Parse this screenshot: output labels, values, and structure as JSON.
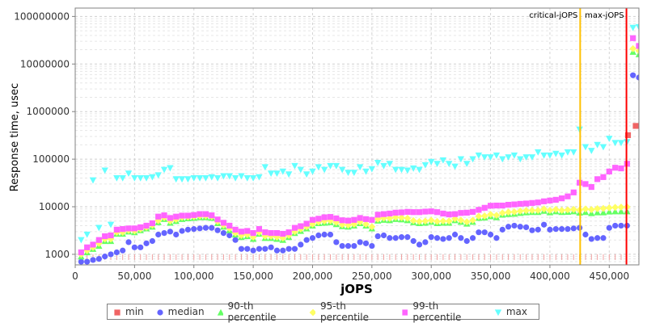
{
  "chart_data": {
    "type": "scatter",
    "title": "",
    "xlabel": "jOPS",
    "ylabel": "Response time, usec",
    "x_scale": "linear",
    "y_scale": "log",
    "xlim": [
      0,
      475000
    ],
    "ylim": [
      600,
      150000000
    ],
    "grid": true,
    "legend_position": "bottom",
    "x_ticks": [
      0,
      50000,
      100000,
      150000,
      200000,
      250000,
      300000,
      350000,
      400000,
      450000
    ],
    "x_tick_labels": [
      "0",
      "50,000",
      "100,000",
      "150,000",
      "200,000",
      "250,000",
      "300,000",
      "350,000",
      "400,000",
      "450,000"
    ],
    "y_ticks": [
      1000,
      10000,
      100000,
      1000000,
      10000000,
      100000000
    ],
    "y_tick_labels": [
      "1000",
      "10000",
      "100000",
      "1000000",
      "10000000",
      "100000000"
    ],
    "markers": [
      {
        "label": "critical-jOPS",
        "x": 425500,
        "color": "#ffc000"
      },
      {
        "label": "max-jOPS",
        "x": 464500,
        "color": "#ff0000"
      }
    ],
    "series": [
      {
        "name": "min",
        "color": "#f06464",
        "shape": "square",
        "x": [
          465800,
          472300
        ],
        "y": [
          320000,
          500000
        ]
      },
      {
        "name": "median",
        "color": "#6464ff",
        "shape": "circle",
        "x": [
          5000,
          10000,
          15000,
          20000,
          25000,
          30000,
          35000,
          40000,
          45000,
          50000,
          55000,
          60000,
          65000,
          70000,
          75000,
          80000,
          85000,
          90000,
          95000,
          100000,
          105000,
          110000,
          115000,
          120000,
          125000,
          130000,
          135000,
          140000,
          145000,
          150000,
          155000,
          160000,
          165000,
          170000,
          175000,
          180000,
          185000,
          190000,
          195000,
          200000,
          205000,
          210000,
          215000,
          220000,
          225000,
          230000,
          235000,
          240000,
          245000,
          250000,
          255000,
          260000,
          265000,
          270000,
          275000,
          280000,
          285000,
          290000,
          295000,
          300000,
          305000,
          310000,
          315000,
          320000,
          325000,
          330000,
          335000,
          340000,
          345000,
          350000,
          355000,
          360000,
          365000,
          370000,
          375000,
          380000,
          385000,
          390000,
          395000,
          400000,
          405000,
          410000,
          415000,
          420000,
          425000,
          430000,
          435000,
          440000,
          445000,
          450000,
          455000,
          460000,
          465000,
          470000,
          475000
        ],
        "y": [
          700,
          700,
          760,
          800,
          900,
          1000,
          1100,
          1200,
          1800,
          1400,
          1400,
          1700,
          1900,
          2600,
          2800,
          3000,
          2600,
          3100,
          3300,
          3400,
          3500,
          3600,
          3600,
          3200,
          2800,
          2500,
          2000,
          1300,
          1300,
          1200,
          1300,
          1300,
          1400,
          1200,
          1200,
          1300,
          1300,
          1600,
          2000,
          2200,
          2500,
          2600,
          2600,
          1800,
          1500,
          1500,
          1500,
          1800,
          1700,
          1500,
          2400,
          2500,
          2200,
          2200,
          2300,
          2300,
          1900,
          1600,
          1800,
          2300,
          2200,
          2100,
          2200,
          2600,
          2200,
          1900,
          2200,
          2900,
          2900,
          2600,
          2200,
          3300,
          3800,
          4000,
          3800,
          3700,
          3200,
          3300,
          4200,
          3300,
          3400,
          3400,
          3400,
          3500,
          3600,
          2600,
          2100,
          2200,
          2200,
          3600,
          4000,
          4000,
          4000,
          5800000,
          5200000
        ]
      },
      {
        "name": "90-th percentile",
        "color": "#64ff64",
        "shape": "triangle-up",
        "x": [
          5000,
          10000,
          15000,
          20000,
          25000,
          30000,
          35000,
          40000,
          45000,
          50000,
          55000,
          60000,
          65000,
          70000,
          75000,
          80000,
          85000,
          90000,
          95000,
          100000,
          105000,
          110000,
          115000,
          120000,
          125000,
          130000,
          135000,
          140000,
          145000,
          150000,
          155000,
          160000,
          165000,
          170000,
          175000,
          180000,
          185000,
          190000,
          195000,
          200000,
          205000,
          210000,
          215000,
          220000,
          225000,
          230000,
          235000,
          240000,
          245000,
          250000,
          255000,
          260000,
          265000,
          270000,
          275000,
          280000,
          285000,
          290000,
          295000,
          300000,
          305000,
          310000,
          315000,
          320000,
          325000,
          330000,
          335000,
          340000,
          345000,
          350000,
          355000,
          360000,
          365000,
          370000,
          375000,
          380000,
          385000,
          390000,
          395000,
          400000,
          405000,
          410000,
          415000,
          420000,
          425000,
          430000,
          435000,
          440000,
          445000,
          450000,
          455000,
          460000,
          465000,
          470000,
          475000
        ],
        "y": [
          900,
          1100,
          1300,
          1500,
          1900,
          1900,
          2700,
          2700,
          3000,
          2900,
          3200,
          3500,
          3800,
          4700,
          5500,
          4600,
          5000,
          5500,
          5700,
          5800,
          6000,
          6000,
          5800,
          4500,
          3800,
          3200,
          2600,
          2300,
          2400,
          2100,
          2700,
          2200,
          2200,
          2100,
          2000,
          2300,
          2800,
          3100,
          3500,
          4000,
          4500,
          4600,
          4700,
          4300,
          3900,
          3800,
          4000,
          4500,
          4000,
          3500,
          5100,
          5300,
          5200,
          5500,
          5400,
          5200,
          4700,
          4500,
          4600,
          4800,
          4500,
          4600,
          4600,
          5200,
          4800,
          4400,
          4800,
          5800,
          5900,
          6300,
          6000,
          6800,
          7000,
          7100,
          7400,
          7600,
          7700,
          7700,
          8200,
          7600,
          8000,
          7700,
          7800,
          8000,
          7500,
          7700,
          7300,
          7600,
          7600,
          7900,
          8000,
          8000,
          8000,
          18000000,
          16000000
        ]
      },
      {
        "name": "95-th percentile",
        "color": "#ffff64",
        "shape": "diamond",
        "x": [
          5000,
          10000,
          15000,
          20000,
          25000,
          30000,
          35000,
          40000,
          45000,
          50000,
          55000,
          60000,
          65000,
          70000,
          75000,
          80000,
          85000,
          90000,
          95000,
          100000,
          105000,
          110000,
          115000,
          120000,
          125000,
          130000,
          135000,
          140000,
          145000,
          150000,
          155000,
          160000,
          165000,
          170000,
          175000,
          180000,
          185000,
          190000,
          195000,
          200000,
          205000,
          210000,
          215000,
          220000,
          225000,
          230000,
          235000,
          240000,
          245000,
          250000,
          255000,
          260000,
          265000,
          270000,
          275000,
          280000,
          285000,
          290000,
          295000,
          300000,
          305000,
          310000,
          315000,
          320000,
          325000,
          330000,
          335000,
          340000,
          345000,
          350000,
          355000,
          360000,
          365000,
          370000,
          375000,
          380000,
          385000,
          390000,
          395000,
          400000,
          405000,
          410000,
          415000,
          420000,
          425000,
          430000,
          435000,
          440000,
          445000,
          450000,
          455000,
          460000,
          465000,
          470000,
          475000
        ],
        "y": [
          1000,
          1200,
          1400,
          1700,
          2100,
          2100,
          2900,
          2900,
          3200,
          3100,
          3400,
          3700,
          4100,
          5100,
          5900,
          5000,
          5400,
          6000,
          6100,
          6200,
          6400,
          6400,
          6200,
          4900,
          4100,
          3500,
          2800,
          2500,
          2600,
          2300,
          2900,
          2400,
          2400,
          2300,
          2200,
          2500,
          3000,
          3400,
          3800,
          4300,
          4800,
          5000,
          5100,
          4700,
          4200,
          4100,
          4300,
          4800,
          4300,
          3800,
          5500,
          5800,
          5700,
          6000,
          5900,
          5700,
          5100,
          4900,
          5000,
          5200,
          4900,
          5000,
          5000,
          5600,
          5200,
          4800,
          5200,
          6300,
          6400,
          6900,
          6600,
          7400,
          7700,
          7800,
          8100,
          8300,
          8400,
          8400,
          9000,
          8400,
          8800,
          8400,
          8600,
          8800,
          8500,
          9000,
          8700,
          9100,
          9200,
          9500,
          9700,
          9800,
          9900,
          21000000,
          19000000
        ]
      },
      {
        "name": "99-th percentile",
        "color": "#ff64ff",
        "shape": "square",
        "x": [
          5000,
          10000,
          15000,
          20000,
          25000,
          30000,
          35000,
          40000,
          45000,
          50000,
          55000,
          60000,
          65000,
          70000,
          75000,
          80000,
          85000,
          90000,
          95000,
          100000,
          105000,
          110000,
          115000,
          120000,
          125000,
          130000,
          135000,
          140000,
          145000,
          150000,
          155000,
          160000,
          165000,
          170000,
          175000,
          180000,
          185000,
          190000,
          195000,
          200000,
          205000,
          210000,
          215000,
          220000,
          225000,
          230000,
          235000,
          240000,
          245000,
          250000,
          255000,
          260000,
          265000,
          270000,
          275000,
          280000,
          285000,
          290000,
          295000,
          300000,
          305000,
          310000,
          315000,
          320000,
          325000,
          330000,
          335000,
          340000,
          345000,
          350000,
          355000,
          360000,
          365000,
          370000,
          375000,
          380000,
          385000,
          390000,
          395000,
          400000,
          405000,
          410000,
          415000,
          420000,
          425000,
          430000,
          435000,
          440000,
          445000,
          450000,
          455000,
          460000,
          465000,
          470000,
          475000
        ],
        "y": [
          1100,
          1400,
          1600,
          2000,
          2400,
          2500,
          3300,
          3400,
          3500,
          3500,
          3700,
          4000,
          4500,
          6200,
          6600,
          5800,
          6200,
          6500,
          6500,
          6700,
          7000,
          7000,
          6600,
          5400,
          4600,
          4000,
          3300,
          3000,
          3100,
          2800,
          3400,
          2900,
          2800,
          2800,
          2700,
          2900,
          3600,
          3900,
          4400,
          5300,
          5600,
          6000,
          6100,
          5700,
          5200,
          5100,
          5300,
          5800,
          5500,
          5300,
          6800,
          7000,
          7200,
          7500,
          7600,
          7800,
          7700,
          7700,
          7900,
          8000,
          7700,
          7200,
          6900,
          7000,
          7400,
          7500,
          7800,
          8600,
          9500,
          10500,
          10600,
          10600,
          11000,
          11200,
          11500,
          11700,
          12000,
          12300,
          13000,
          13500,
          14000,
          15000,
          16500,
          20000,
          32000,
          30000,
          26000,
          38000,
          42000,
          55000,
          66000,
          64000,
          80000,
          35000000,
          24000000
        ]
      },
      {
        "name": "max",
        "color": "#64ffff",
        "shape": "triangle-down",
        "x": [
          5000,
          10000,
          15000,
          20000,
          25000,
          30000,
          35000,
          40000,
          45000,
          50000,
          55000,
          60000,
          65000,
          70000,
          75000,
          80000,
          85000,
          90000,
          95000,
          100000,
          105000,
          110000,
          115000,
          120000,
          125000,
          130000,
          135000,
          140000,
          145000,
          150000,
          155000,
          160000,
          165000,
          170000,
          175000,
          180000,
          185000,
          190000,
          195000,
          200000,
          205000,
          210000,
          215000,
          220000,
          225000,
          230000,
          235000,
          240000,
          245000,
          250000,
          255000,
          260000,
          265000,
          270000,
          275000,
          280000,
          285000,
          290000,
          295000,
          300000,
          305000,
          310000,
          315000,
          320000,
          325000,
          330000,
          335000,
          340000,
          345000,
          350000,
          355000,
          360000,
          365000,
          370000,
          375000,
          380000,
          385000,
          390000,
          395000,
          400000,
          405000,
          410000,
          415000,
          420000,
          425000,
          430000,
          435000,
          440000,
          445000,
          450000,
          455000,
          460000,
          465000,
          470000,
          475000
        ],
        "y": [
          2000,
          2600,
          36000,
          3600,
          58000,
          4200,
          40000,
          40000,
          50000,
          40000,
          40000,
          40000,
          42000,
          46000,
          60000,
          65000,
          38000,
          38000,
          38000,
          40000,
          40000,
          40000,
          42000,
          40000,
          44000,
          44000,
          40000,
          44000,
          40000,
          40000,
          42000,
          68000,
          50000,
          50000,
          55000,
          48000,
          72000,
          60000,
          48000,
          55000,
          68000,
          60000,
          72000,
          72000,
          60000,
          52000,
          52000,
          68000,
          55000,
          62000,
          84000,
          72000,
          80000,
          60000,
          60000,
          58000,
          64000,
          60000,
          75000,
          88000,
          80000,
          95000,
          80000,
          70000,
          100000,
          80000,
          100000,
          120000,
          110000,
          110000,
          120000,
          100000,
          110000,
          120000,
          100000,
          110000,
          110000,
          140000,
          120000,
          120000,
          130000,
          120000,
          140000,
          140000,
          420000,
          180000,
          150000,
          200000,
          180000,
          270000,
          220000,
          220000,
          230000,
          58000000,
          60000000
        ]
      }
    ]
  }
}
